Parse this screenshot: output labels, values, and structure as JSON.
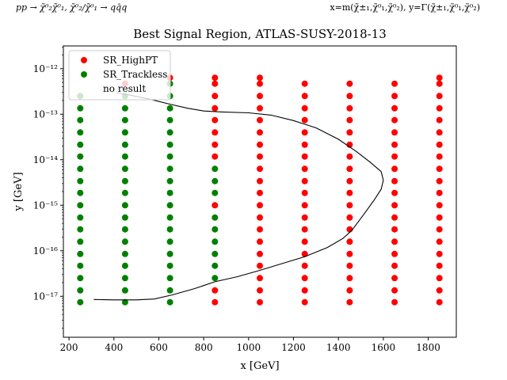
{
  "header": {
    "left": "pp → χ̃⁰₂χ̃⁰₁, χ̃⁰₂/χ̃⁰₁ → qq̄q",
    "right": "x=m(χ̃±₁,χ̃⁰₁,χ̃⁰₂), y=Γ(χ̃±₁,χ̃⁰₁,χ̃⁰₂)"
  },
  "chart_data": {
    "type": "scatter",
    "title": "Best Signal Region, ATLAS-SUSY-2018-13",
    "xlabel": "x [GeV]",
    "ylabel": "y [GeV]",
    "xlim": [
      175,
      1925
    ],
    "ylim_log10": [
      -17.9,
      -11.5
    ],
    "yscale": "log",
    "xticks": [
      200,
      400,
      600,
      800,
      1000,
      1200,
      1400,
      1600,
      1800
    ],
    "yticks": [
      {
        "exp": -12,
        "label": "10⁻¹²"
      },
      {
        "exp": -13,
        "label": "10⁻¹³"
      },
      {
        "exp": -14,
        "label": "10⁻¹⁴"
      },
      {
        "exp": -15,
        "label": "10⁻¹⁵"
      },
      {
        "exp": -16,
        "label": "10⁻¹⁶"
      },
      {
        "exp": -17,
        "label": "10⁻¹⁷"
      }
    ],
    "legend": {
      "placement": "top-left",
      "entries": [
        {
          "label": "SR_HighPT",
          "color": "#ff0000"
        },
        {
          "label": "SR_Trackless",
          "color": "#008000"
        },
        {
          "label": "no result",
          "color": "#ffffff"
        }
      ]
    },
    "colors": {
      "SR_HighPT": "#ff0000",
      "SR_Trackless": "#008000"
    },
    "grid_log10y": [
      -17.13,
      -16.87,
      -16.6,
      -16.33,
      -16.07,
      -15.8,
      -15.53,
      -15.27,
      -15.0,
      -14.73,
      -14.47,
      -14.2,
      -13.93,
      -13.67,
      -13.4,
      -13.13,
      -12.87,
      -12.6,
      -12.33,
      -12.2
    ],
    "columns": [
      {
        "x": 250,
        "points": "GGGGGGGGGGGGGGGGGG"
      },
      {
        "x": 450,
        "points": "GGGGGGGGGGGGGGGGGGR"
      },
      {
        "x": 650,
        "points": "GGGGGGGGGGGGGGGGGGGR"
      },
      {
        "x": 850,
        "points": "RRGGGGGGRGGGRRRRRRRR"
      },
      {
        "x": 1050,
        "points": "RRRRRRRRRRRRRRRRRRRR"
      },
      {
        "x": 1250,
        "points": "RRRRRRRRRRRRRRRRRRR"
      },
      {
        "x": 1450,
        "points": "RRRRRRRRRRRRRRRRRRR"
      },
      {
        "x": 1650,
        "points": "RRRRRRRRRRRRRRRRRRR"
      },
      {
        "x": 1850,
        "points": "RRRRRRRRRRRRRRRRRRRR"
      }
    ],
    "contour": [
      [
        310,
        -17.07
      ],
      [
        400,
        -17.08
      ],
      [
        500,
        -17.08
      ],
      [
        580,
        -17.06
      ],
      [
        660,
        -16.97
      ],
      [
        760,
        -16.83
      ],
      [
        850,
        -16.68
      ],
      [
        950,
        -16.57
      ],
      [
        1050,
        -16.43
      ],
      [
        1150,
        -16.28
      ],
      [
        1250,
        -16.13
      ],
      [
        1350,
        -15.93
      ],
      [
        1420,
        -15.73
      ],
      [
        1460,
        -15.55
      ],
      [
        1510,
        -15.22
      ],
      [
        1560,
        -14.88
      ],
      [
        1590,
        -14.65
      ],
      [
        1600,
        -14.45
      ],
      [
        1590,
        -14.26
      ],
      [
        1540,
        -14.05
      ],
      [
        1480,
        -13.82
      ],
      [
        1400,
        -13.55
      ],
      [
        1300,
        -13.3
      ],
      [
        1200,
        -13.14
      ],
      [
        1100,
        -13.02
      ],
      [
        1000,
        -12.97
      ],
      [
        880,
        -12.95
      ],
      [
        800,
        -12.93
      ],
      [
        730,
        -12.87
      ],
      [
        650,
        -12.78
      ],
      [
        560,
        -12.67
      ],
      [
        470,
        -12.58
      ],
      [
        430,
        -12.55
      ],
      [
        410,
        -12.52
      ]
    ]
  }
}
